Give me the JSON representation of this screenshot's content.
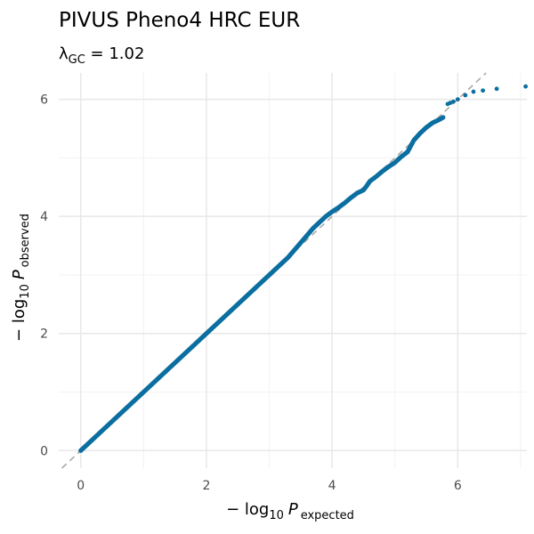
{
  "chart_data": {
    "type": "scatter",
    "title": "PIVUS Pheno4 HRC EUR",
    "subtitle": {
      "symbol": "λ",
      "subscript": "GC",
      "equals": " = ",
      "value": "1.02"
    },
    "xlabel": {
      "prefix": "− log",
      "base": "10",
      "variable": "P",
      "subscript": "expected"
    },
    "ylabel": {
      "prefix": "− log",
      "base": "10",
      "variable": "P",
      "subscript": "observed"
    },
    "xlim": [
      -0.35,
      7.1
    ],
    "ylim": [
      -0.3,
      6.45
    ],
    "x_ticks": [
      0,
      2,
      4,
      6
    ],
    "y_ticks": [
      0,
      2,
      4,
      6
    ],
    "grid": true,
    "reference_line": {
      "slope": 1,
      "intercept": 0,
      "style": "dashed",
      "color": "#aaaaaa"
    },
    "point_color": "#0b6fa0",
    "series": [
      {
        "trend": {
          "x": [
            0,
            0.5,
            1.0,
            1.5,
            2.0,
            2.5,
            3.0,
            3.3,
            3.5,
            3.7,
            3.9,
            4.0,
            4.1,
            4.2,
            4.3,
            4.4,
            4.5,
            4.55,
            4.6,
            4.7,
            4.8,
            4.9,
            5.0,
            5.1,
            5.2,
            5.3,
            5.4,
            5.5,
            5.6,
            5.7,
            5.78
          ],
          "y": [
            0,
            0.5,
            1.0,
            1.5,
            2.0,
            2.5,
            3.0,
            3.3,
            3.55,
            3.8,
            4.0,
            4.08,
            4.15,
            4.23,
            4.32,
            4.4,
            4.45,
            4.52,
            4.6,
            4.68,
            4.77,
            4.85,
            4.92,
            5.02,
            5.1,
            5.3,
            5.42,
            5.52,
            5.6,
            5.65,
            5.7
          ]
        },
        "tail_points": [
          {
            "x": 5.84,
            "y": 5.92
          },
          {
            "x": 5.88,
            "y": 5.94
          },
          {
            "x": 5.93,
            "y": 5.96
          },
          {
            "x": 6.0,
            "y": 6.0
          },
          {
            "x": 6.12,
            "y": 6.07
          },
          {
            "x": 6.25,
            "y": 6.13
          },
          {
            "x": 6.4,
            "y": 6.15
          },
          {
            "x": 6.62,
            "y": 6.18
          },
          {
            "x": 7.08,
            "y": 6.22
          }
        ]
      }
    ]
  }
}
